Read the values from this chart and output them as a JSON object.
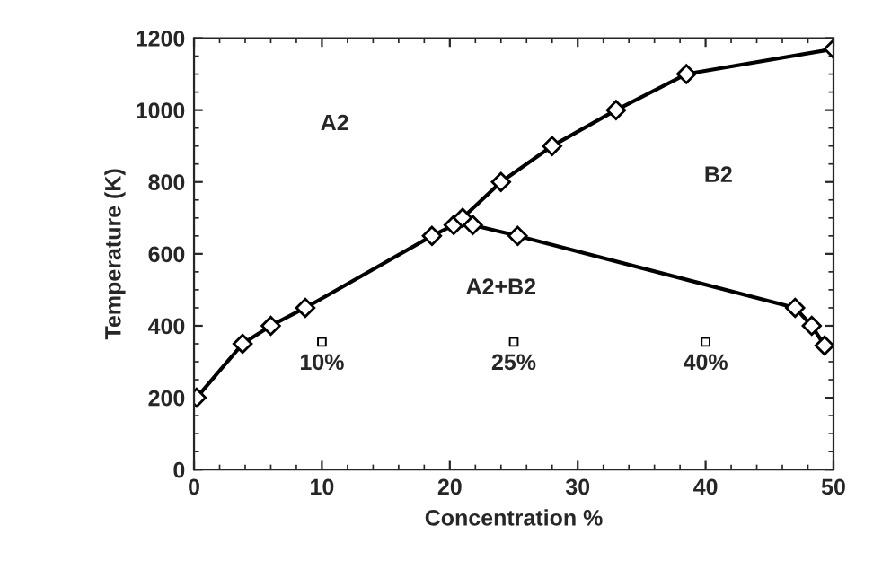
{
  "chart_data": {
    "type": "line",
    "xlabel": "Concentration %",
    "ylabel": "Temperature (K)",
    "xlim": [
      0,
      50
    ],
    "xticks": [
      0,
      10,
      20,
      30,
      40,
      50
    ],
    "ylim": [
      0,
      1200
    ],
    "yticks": [
      0,
      200,
      400,
      600,
      800,
      1000,
      1200
    ],
    "grid": false,
    "legend": false,
    "marker": "diamond",
    "line_style": "solid",
    "series": [
      {
        "color": "#000000",
        "x": [
          0.2,
          3.8,
          6,
          8.7,
          18.6,
          20.3,
          21,
          24,
          28,
          33,
          38.5,
          50
        ],
        "values": [
          200,
          350,
          400,
          450,
          650,
          680,
          700,
          800,
          900,
          1000,
          1100,
          1170
        ]
      },
      {
        "color": "#000000",
        "x": [
          21.8,
          25.3,
          47,
          48.3,
          49.3
        ],
        "values": [
          680,
          650,
          450,
          400,
          345
        ]
      },
      {
        "type": "scatter",
        "marker": "square",
        "color": "#000000",
        "x": [
          10,
          25,
          40
        ],
        "values": [
          355,
          355,
          355
        ]
      }
    ],
    "annotations": [
      "A2",
      "B2",
      "A2+B2",
      "10%",
      "25%",
      "40%"
    ]
  }
}
